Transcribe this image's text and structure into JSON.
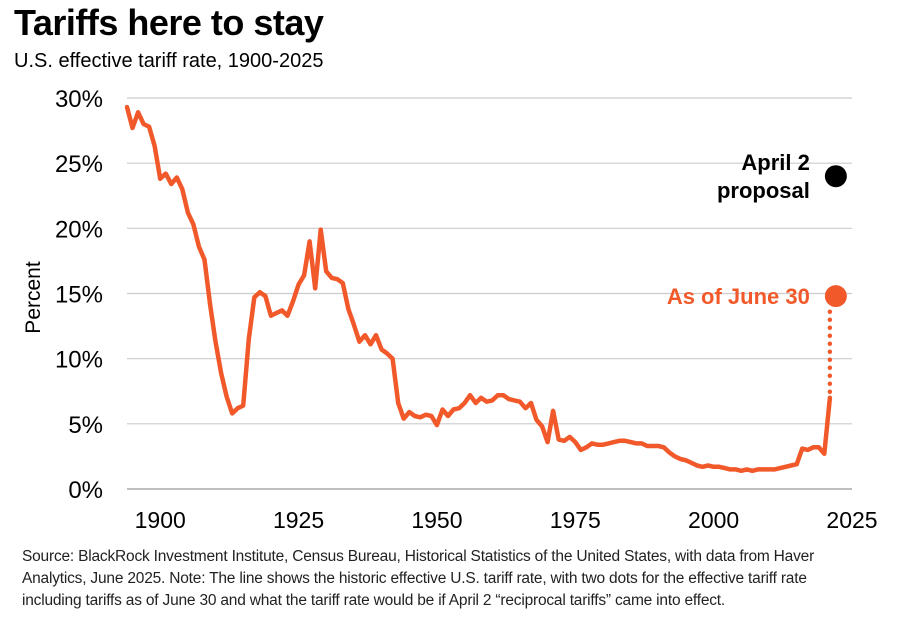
{
  "title": "Tariffs here to stay",
  "subtitle": "U.S. effective tariff rate, 1900-2025",
  "source_lines": [
    "Source: BlackRock Investment Institute, Census Bureau, Historical Statistics of the United States, with data from Haver",
    "Analytics, June 2025. Note: The line shows the historic effective U.S. tariff rate, with two dots for the effective tariff rate",
    "including tariffs as of June 30 and what the tariff rate would be if April 2 “reciprocal tariffs” came into effect."
  ],
  "colors": {
    "series": "#f1592a",
    "proposal_dot": "#000000",
    "grid": "#cccccc"
  },
  "chart_data": {
    "type": "line",
    "title": "Tariffs here to stay",
    "subtitle": "U.S. effective tariff rate, 1900-2025",
    "xlabel": "",
    "ylabel": "Percent",
    "xlim": [
      1894,
      2025
    ],
    "ylim": [
      0,
      30
    ],
    "xticks": [
      1900,
      1925,
      1950,
      1975,
      2000,
      2025
    ],
    "yticks": [
      0,
      5,
      10,
      15,
      20,
      25,
      30
    ],
    "ytick_labels": [
      "0%",
      "5%",
      "10%",
      "15%",
      "20%",
      "25%",
      "30%"
    ],
    "series": [
      {
        "name": "U.S. effective tariff rate",
        "x": [
          1894,
          1895,
          1896,
          1897,
          1898,
          1899,
          1900,
          1901,
          1902,
          1903,
          1904,
          1905,
          1906,
          1907,
          1908,
          1909,
          1910,
          1911,
          1912,
          1913,
          1914,
          1915,
          1916,
          1917,
          1918,
          1919,
          1920,
          1921,
          1922,
          1923,
          1924,
          1925,
          1926,
          1927,
          1928,
          1929,
          1930,
          1931,
          1932,
          1933,
          1934,
          1935,
          1936,
          1937,
          1938,
          1939,
          1940,
          1941,
          1942,
          1943,
          1944,
          1945,
          1946,
          1947,
          1948,
          1949,
          1950,
          1951,
          1952,
          1953,
          1954,
          1955,
          1956,
          1957,
          1958,
          1959,
          1960,
          1961,
          1962,
          1963,
          1964,
          1965,
          1966,
          1967,
          1968,
          1969,
          1970,
          1971,
          1972,
          1973,
          1974,
          1975,
          1976,
          1977,
          1978,
          1979,
          1980,
          1981,
          1982,
          1983,
          1984,
          1985,
          1986,
          1987,
          1988,
          1989,
          1990,
          1991,
          1992,
          1993,
          1994,
          1995,
          1996,
          1997,
          1998,
          1999,
          2000,
          2001,
          2002,
          2003,
          2004,
          2005,
          2006,
          2007,
          2008,
          2009,
          2010,
          2011,
          2012,
          2013,
          2014,
          2015,
          2016,
          2017,
          2018,
          2019,
          2020,
          2021
        ],
        "values": [
          29.3,
          27.7,
          28.9,
          28.0,
          27.8,
          26.3,
          23.8,
          24.2,
          23.4,
          23.9,
          23.0,
          21.2,
          20.3,
          18.6,
          17.6,
          14.2,
          11.3,
          8.9,
          7.1,
          5.8,
          6.2,
          6.4,
          11.5,
          14.7,
          15.1,
          14.8,
          13.3,
          13.5,
          13.7,
          13.3,
          14.4,
          15.7,
          16.4,
          19.0,
          15.4,
          19.9,
          16.7,
          16.2,
          16.1,
          15.8,
          13.8,
          12.6,
          11.3,
          11.8,
          11.1,
          11.8,
          10.7,
          10.4,
          10.0,
          6.6,
          5.4,
          5.9,
          5.6,
          5.5,
          5.7,
          5.6,
          4.9,
          6.1,
          5.6,
          6.1,
          6.2,
          6.6,
          7.2,
          6.6,
          7.0,
          6.7,
          6.8,
          7.2,
          7.2,
          6.9,
          6.8,
          6.7,
          6.2,
          6.6,
          5.3,
          4.8,
          3.6,
          6.0,
          3.8,
          3.7,
          4.0,
          3.6,
          3.0,
          3.2,
          3.5,
          3.4,
          3.4,
          3.5,
          3.6,
          3.7,
          3.7,
          3.6,
          3.5,
          3.5,
          3.3,
          3.3,
          3.3,
          3.2,
          2.8,
          2.5,
          2.3,
          2.2,
          2.0,
          1.8,
          1.7,
          1.8,
          1.7,
          1.7,
          1.6,
          1.5,
          1.5,
          1.4,
          1.5,
          1.4,
          1.5,
          1.5,
          1.5,
          1.5,
          1.6,
          1.7,
          1.8,
          1.9,
          3.1,
          3.0,
          3.2,
          3.2,
          2.7,
          7.0
        ]
      }
    ],
    "projection_line": {
      "x": 2021,
      "from": 7.0,
      "to": 14.8,
      "style": "dotted"
    },
    "points": [
      {
        "name": "April 2 proposal",
        "label_lines": [
          "April 2",
          "proposal"
        ],
        "x": 2021,
        "y": 24.0,
        "color": "#000000"
      },
      {
        "name": "As of June 30",
        "label_lines": [
          "As of June 30"
        ],
        "x": 2021,
        "y": 14.8,
        "color": "#f1592a"
      }
    ],
    "grid": true,
    "legend": "none"
  }
}
